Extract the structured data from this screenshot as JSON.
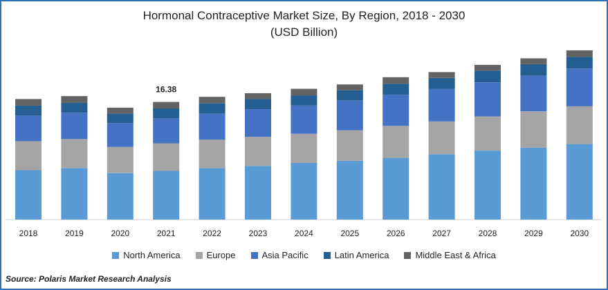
{
  "chart_data": {
    "type": "bar",
    "stacked": true,
    "title": "Hormonal Contraceptive Market Size, By Region, 2018 - 2030",
    "subtitle": "(USD Billion)",
    "categories": [
      "2018",
      "2019",
      "2020",
      "2021",
      "2022",
      "2023",
      "2024",
      "2025",
      "2026",
      "2027",
      "2028",
      "2029",
      "2030"
    ],
    "series": [
      {
        "name": "North America",
        "color": "#5b9bd5",
        "values": [
          6.8,
          7.1,
          6.4,
          6.7,
          7.1,
          7.4,
          7.8,
          8.1,
          8.5,
          9.0,
          9.5,
          9.9,
          10.4
        ]
      },
      {
        "name": "Europe",
        "color": "#a5a5a5",
        "values": [
          4.0,
          4.0,
          3.6,
          3.8,
          3.9,
          4.0,
          4.0,
          4.2,
          4.4,
          4.5,
          4.7,
          5.0,
          5.2
        ]
      },
      {
        "name": "Asia Pacific",
        "color": "#4472c4",
        "values": [
          3.5,
          3.6,
          3.3,
          3.4,
          3.6,
          3.8,
          3.9,
          4.1,
          4.3,
          4.5,
          4.7,
          4.9,
          5.2
        ]
      },
      {
        "name": "Latin America",
        "color": "#255e91",
        "values": [
          1.4,
          1.4,
          1.3,
          1.4,
          1.4,
          1.4,
          1.4,
          1.4,
          1.5,
          1.5,
          1.6,
          1.6,
          1.6
        ]
      },
      {
        "name": "Middle East & Africa",
        "color": "#636363",
        "values": [
          0.9,
          0.9,
          0.8,
          0.9,
          0.9,
          0.8,
          0.9,
          0.8,
          0.9,
          0.8,
          0.8,
          0.8,
          0.9
        ]
      }
    ],
    "ylim": [
      0,
      25
    ],
    "annotations": [
      {
        "category": "2021",
        "text": "16.38"
      }
    ],
    "legend_position": "bottom",
    "grid": false
  },
  "source": "Source: Polaris Market Research Analysis"
}
